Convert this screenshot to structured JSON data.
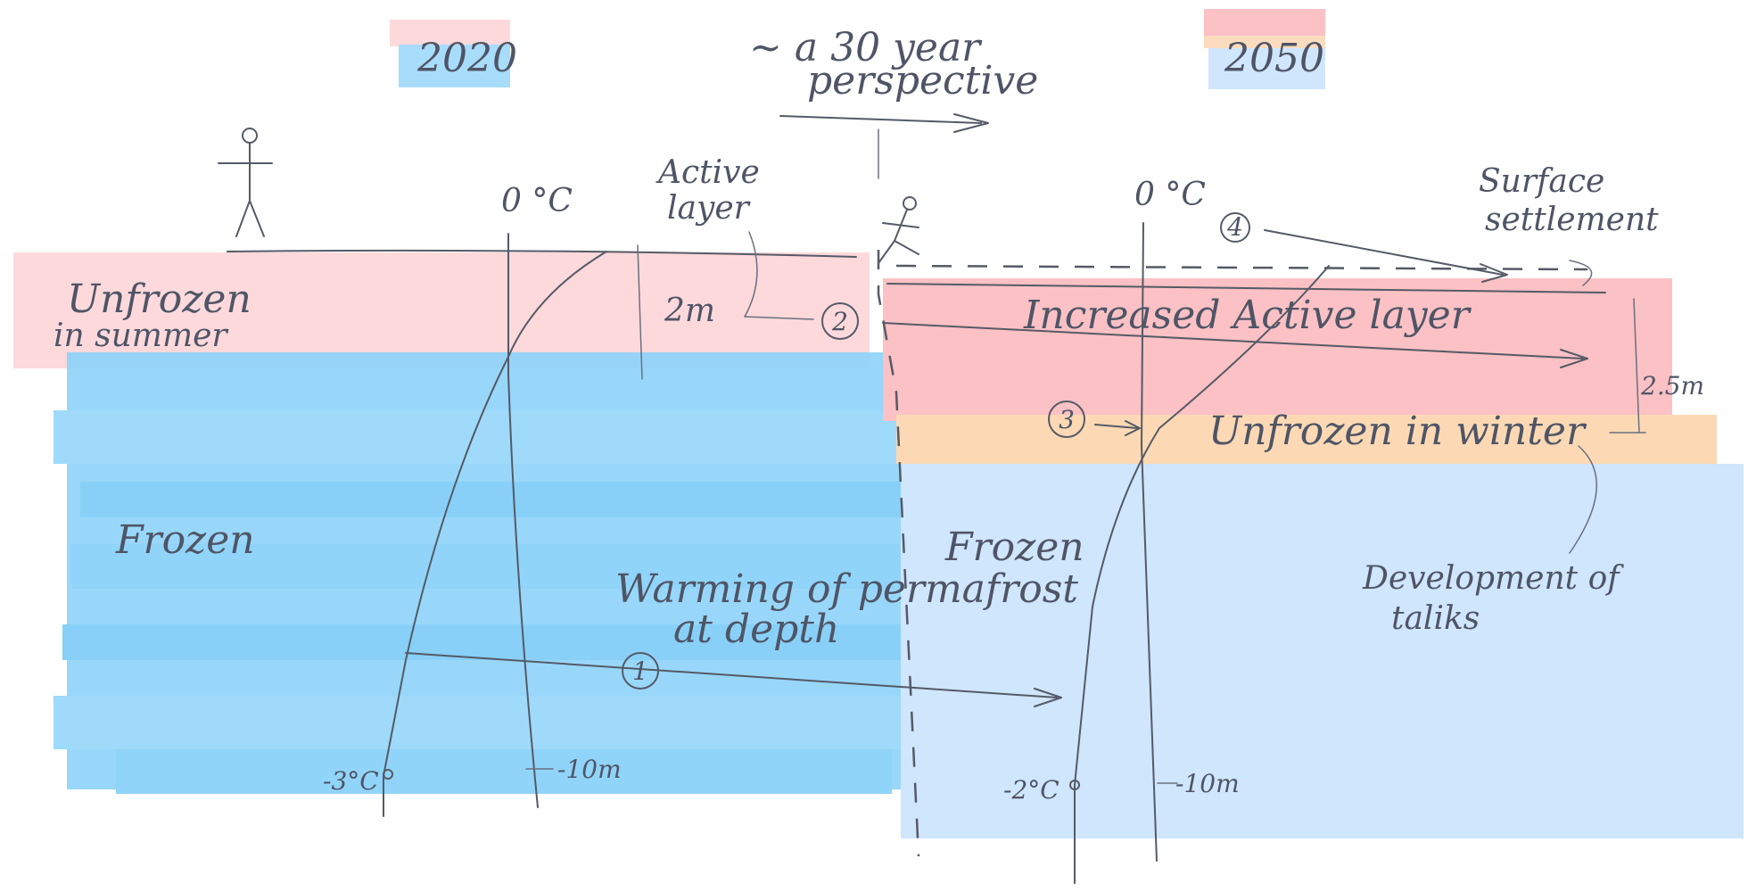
{
  "colors": {
    "active_layer": "#fdd9dc",
    "active_layer_2050": "#fbb9bf",
    "frozen_2020": "#8dd3fa",
    "frozen_2050": "#cfe6fc",
    "unfrozen_winter": "#fcd9b4",
    "ink": "#555a66"
  },
  "header": {
    "year_left": "2020",
    "year_right": "2050",
    "perspective_line1": "~ a 30 year",
    "perspective_line2": "perspective"
  },
  "left_panel": {
    "zero_label": "0 °C",
    "active_layer_line1": "Active",
    "active_layer_line2": "layer",
    "depth_active": "2m",
    "unfrozen_line1": "Unfrozen",
    "unfrozen_line2": "in summer",
    "frozen": "Frozen",
    "temp_bottom": "-3°C",
    "depth_bottom": "-10m"
  },
  "right_panel": {
    "zero_label": "0 °C",
    "surface_line1": "Surface",
    "surface_line2": "settlement",
    "increased_active": "Increased Active layer",
    "depth_active": "2.5m",
    "unfrozen_winter": "Unfrozen in winter",
    "frozen": "Frozen",
    "taliks_line1": "Development of",
    "taliks_line2": "taliks",
    "temp_bottom": "-2°C",
    "depth_bottom": "-10m"
  },
  "center": {
    "warming_line1": "Warming of permafrost",
    "warming_line2": "at depth"
  },
  "markers": {
    "m1": "1",
    "m2": "2",
    "m3": "3",
    "m4": "4"
  }
}
